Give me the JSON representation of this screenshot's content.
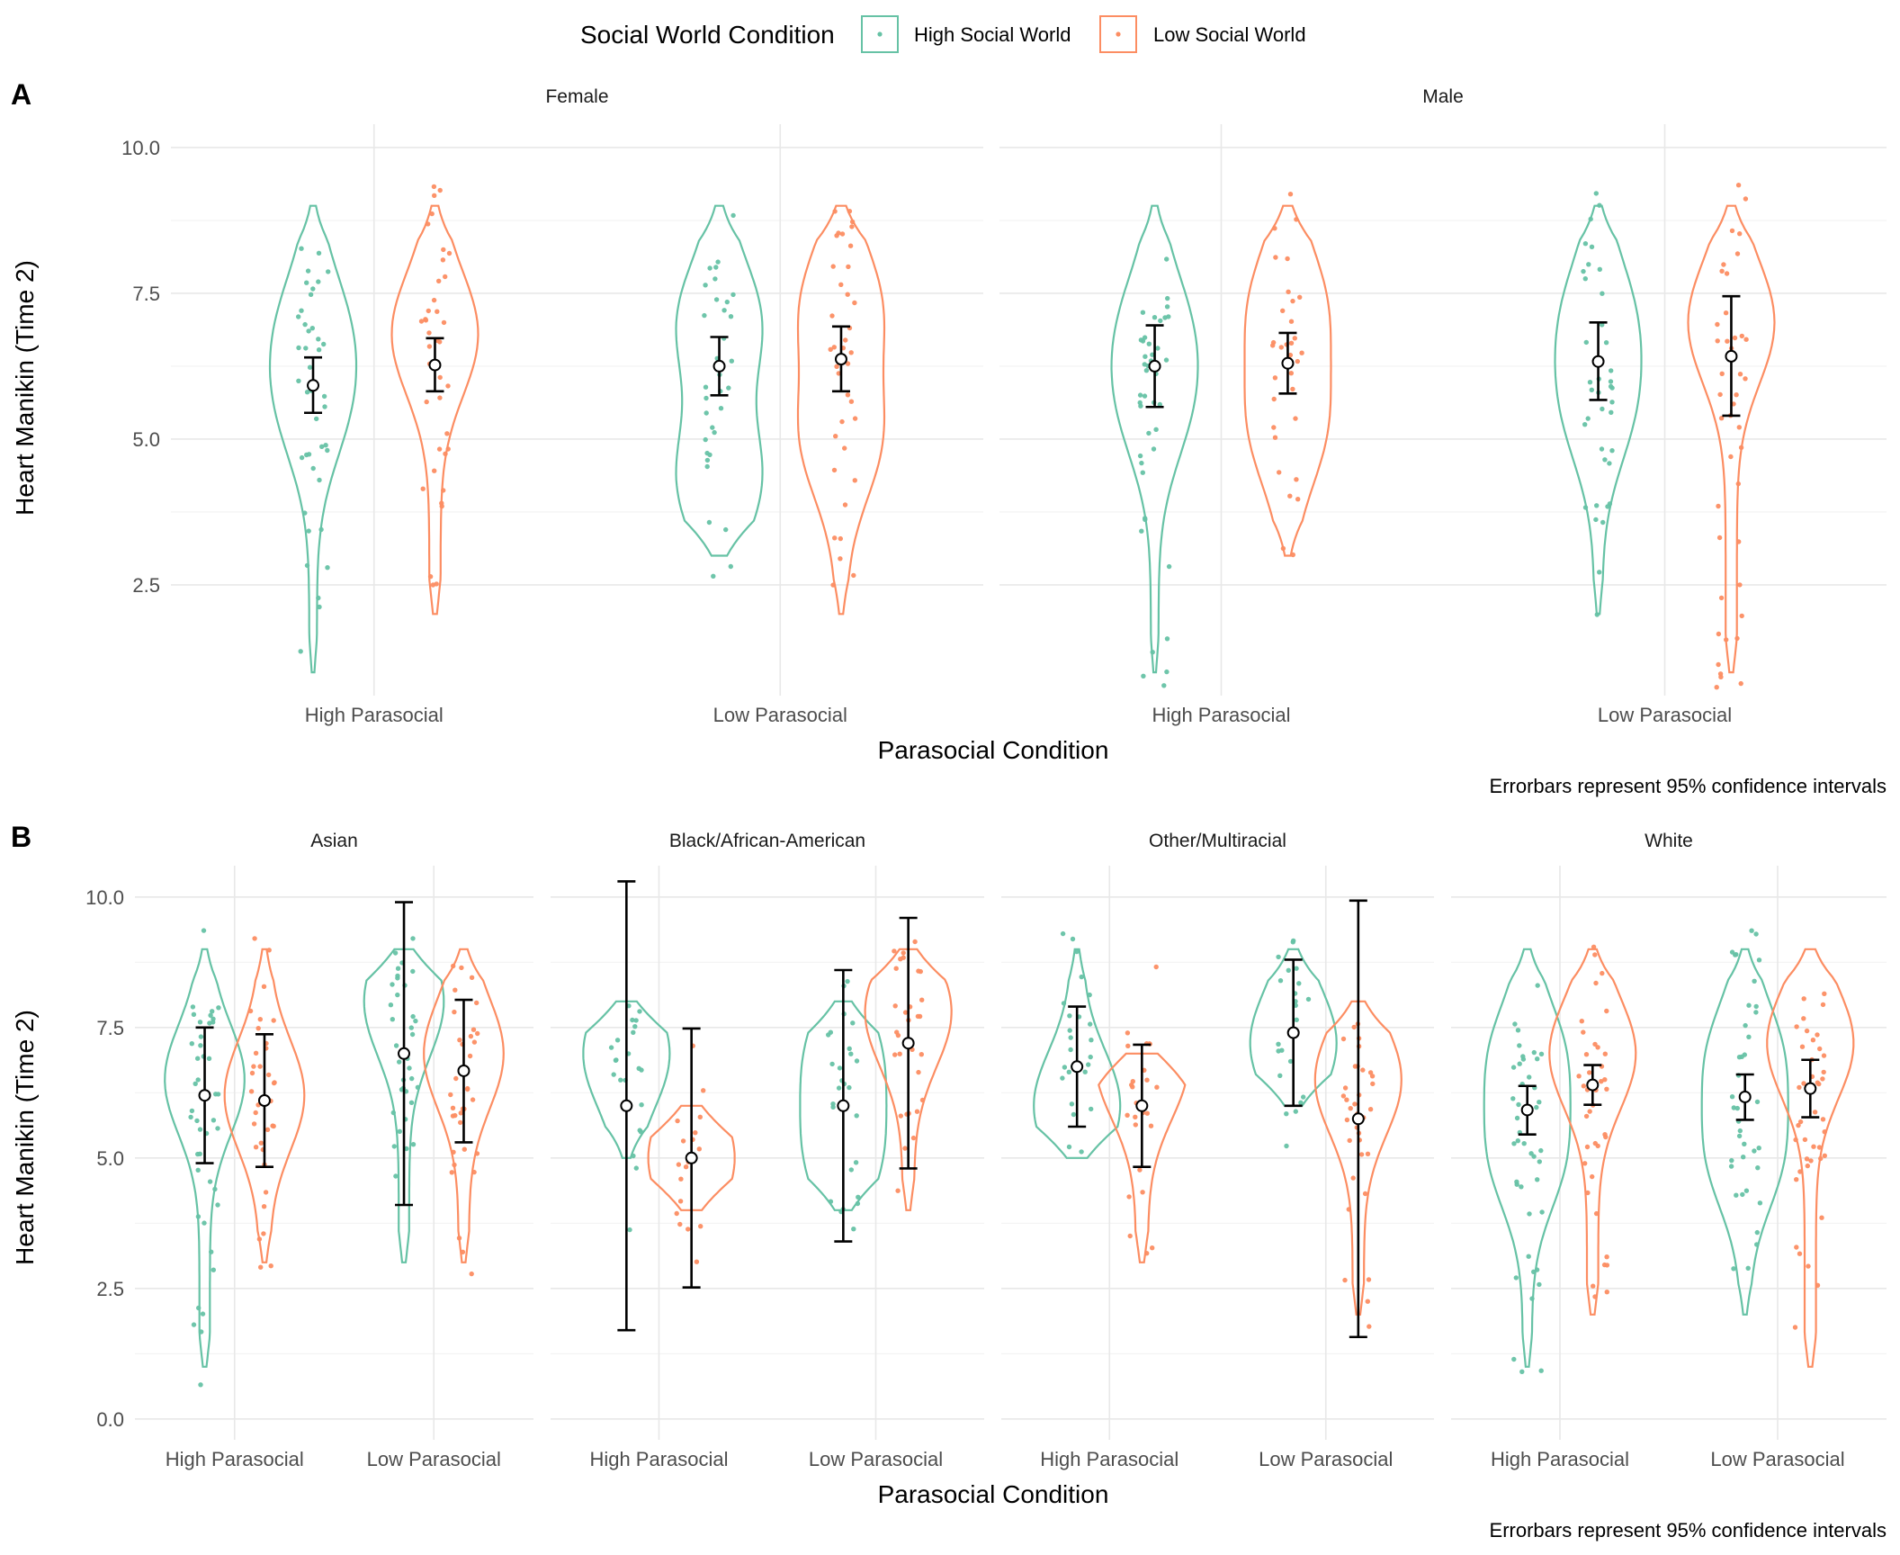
{
  "legend": {
    "title": "Social World Condition",
    "items": [
      {
        "label": "High Social World",
        "color": "#66c2a5"
      },
      {
        "label": "Low Social World",
        "color": "#fc8d62"
      }
    ]
  },
  "chart_data": [
    {
      "type": "violin",
      "panel_tag": "A",
      "ylabel": "Heart Manikin (Time 2)",
      "xlabel": "Parasocial Condition",
      "caption": "Errorbars represent 95% confidence intervals",
      "ylim": [
        0.6,
        10.4
      ],
      "yticks": [
        2.5,
        5.0,
        7.5,
        10.0
      ],
      "ytick_labels": [
        "2.5",
        "5.0",
        "7.5",
        "10.0"
      ],
      "categories": [
        "High Parasocial",
        "Low Parasocial"
      ],
      "facets": [
        {
          "name": "Female",
          "groups": [
            {
              "category": "High Parasocial",
              "series": "High Social World",
              "range": [
                1,
                9
              ],
              "mean": 5.92,
              "ci": [
                5.45,
                6.4
              ],
              "modes": [
                7.0,
                5.5
              ]
            },
            {
              "category": "High Parasocial",
              "series": "Low Social World",
              "range": [
                2,
                9
              ],
              "mean": 6.27,
              "ci": [
                5.82,
                6.73
              ],
              "modes": [
                6.8
              ]
            },
            {
              "category": "Low Parasocial",
              "series": "High Social World",
              "range": [
                3,
                9
              ],
              "mean": 6.25,
              "ci": [
                5.75,
                6.75
              ],
              "modes": [
                7.0,
                4.3
              ]
            },
            {
              "category": "Low Parasocial",
              "series": "Low Social World",
              "range": [
                2,
                9
              ],
              "mean": 6.37,
              "ci": [
                5.82,
                6.93
              ],
              "modes": [
                7.3,
                5.0
              ]
            }
          ]
        },
        {
          "name": "Male",
          "groups": [
            {
              "category": "High Parasocial",
              "series": "High Social World",
              "range": [
                1,
                9
              ],
              "mean": 6.25,
              "ci": [
                5.55,
                6.95
              ],
              "modes": [
                7.0,
                5.5
              ]
            },
            {
              "category": "High Parasocial",
              "series": "Low Social World",
              "range": [
                3,
                9
              ],
              "mean": 6.3,
              "ci": [
                5.78,
                6.82
              ],
              "modes": [
                7.3,
                5.2
              ]
            },
            {
              "category": "Low Parasocial",
              "series": "High Social World",
              "range": [
                2,
                9
              ],
              "mean": 6.33,
              "ci": [
                5.67,
                7.0
              ],
              "modes": [
                7.2,
                5.5
              ]
            },
            {
              "category": "Low Parasocial",
              "series": "Low Social World",
              "range": [
                1,
                9
              ],
              "mean": 6.42,
              "ci": [
                5.4,
                7.45
              ],
              "modes": [
                7.0
              ]
            }
          ]
        }
      ]
    },
    {
      "type": "violin",
      "panel_tag": "B",
      "ylabel": "Heart Manikin (Time 2)",
      "xlabel": "Parasocial Condition",
      "caption": "Errorbars represent 95% confidence intervals",
      "ylim": [
        -0.4,
        10.6
      ],
      "yticks": [
        0.0,
        2.5,
        5.0,
        7.5,
        10.0
      ],
      "ytick_labels": [
        "0.0",
        "2.5",
        "5.0",
        "7.5",
        "10.0"
      ],
      "categories": [
        "High Parasocial",
        "Low Parasocial"
      ],
      "facets": [
        {
          "name": "Asian",
          "groups": [
            {
              "category": "High Parasocial",
              "series": "High Social World",
              "range": [
                1,
                9
              ],
              "mean": 6.2,
              "ci": [
                4.9,
                7.5
              ],
              "modes": [
                6.5
              ]
            },
            {
              "category": "High Parasocial",
              "series": "Low Social World",
              "range": [
                3,
                9
              ],
              "mean": 6.1,
              "ci": [
                4.83,
                7.37
              ],
              "modes": [
                6.2
              ]
            },
            {
              "category": "Low Parasocial",
              "series": "High Social World",
              "range": [
                3,
                9
              ],
              "mean": 7.0,
              "ci": [
                4.1,
                9.9
              ],
              "modes": [
                8.0
              ]
            },
            {
              "category": "Low Parasocial",
              "series": "Low Social World",
              "range": [
                3,
                9
              ],
              "mean": 6.67,
              "ci": [
                5.3,
                8.03
              ],
              "modes": [
                7.0
              ]
            }
          ]
        },
        {
          "name": "Black/African-American",
          "groups": [
            {
              "category": "High Parasocial",
              "series": "High Social World",
              "range": [
                5,
                8
              ],
              "mean": 6.0,
              "ci": [
                1.7,
                10.3
              ],
              "modes": [
                7.0
              ]
            },
            {
              "category": "High Parasocial",
              "series": "Low Social World",
              "range": [
                4,
                6
              ],
              "mean": 5.0,
              "ci": [
                2.52,
                7.48
              ],
              "modes": [
                5.0
              ]
            },
            {
              "category": "Low Parasocial",
              "series": "High Social World",
              "range": [
                4,
                8
              ],
              "mean": 6.0,
              "ci": [
                3.4,
                8.6
              ],
              "modes": [
                7.0,
                5.0
              ]
            },
            {
              "category": "Low Parasocial",
              "series": "Low Social World",
              "range": [
                4,
                9
              ],
              "mean": 7.2,
              "ci": [
                4.8,
                9.6
              ],
              "modes": [
                7.8
              ]
            }
          ]
        },
        {
          "name": "Other/Multiracial",
          "groups": [
            {
              "category": "High Parasocial",
              "series": "High Social World",
              "range": [
                5,
                9
              ],
              "mean": 6.75,
              "ci": [
                5.6,
                7.9
              ],
              "modes": [
                6.0
              ]
            },
            {
              "category": "High Parasocial",
              "series": "Low Social World",
              "range": [
                3,
                7
              ],
              "mean": 6.0,
              "ci": [
                4.83,
                7.17
              ],
              "modes": [
                6.8
              ]
            },
            {
              "category": "Low Parasocial",
              "series": "High Social World",
              "range": [
                6,
                9
              ],
              "mean": 7.4,
              "ci": [
                6.0,
                8.8
              ],
              "modes": [
                7.2
              ]
            },
            {
              "category": "Low Parasocial",
              "series": "Low Social World",
              "range": [
                2,
                8
              ],
              "mean": 5.75,
              "ci": [
                1.57,
                9.93
              ],
              "modes": [
                6.5
              ]
            }
          ]
        },
        {
          "name": "White",
          "groups": [
            {
              "category": "High Parasocial",
              "series": "High Social World",
              "range": [
                1,
                9
              ],
              "mean": 5.92,
              "ci": [
                5.45,
                6.38
              ],
              "modes": [
                7.0,
                5.0
              ]
            },
            {
              "category": "High Parasocial",
              "series": "Low Social World",
              "range": [
                2,
                9
              ],
              "mean": 6.4,
              "ci": [
                6.02,
                6.78
              ],
              "modes": [
                7.0
              ]
            },
            {
              "category": "Low Parasocial",
              "series": "High Social World",
              "range": [
                2,
                9
              ],
              "mean": 6.17,
              "ci": [
                5.73,
                6.6
              ],
              "modes": [
                7.0,
                5.0
              ]
            },
            {
              "category": "Low Parasocial",
              "series": "Low Social World",
              "range": [
                1,
                9
              ],
              "mean": 6.33,
              "ci": [
                5.78,
                6.88
              ],
              "modes": [
                7.2
              ]
            }
          ]
        }
      ]
    }
  ]
}
